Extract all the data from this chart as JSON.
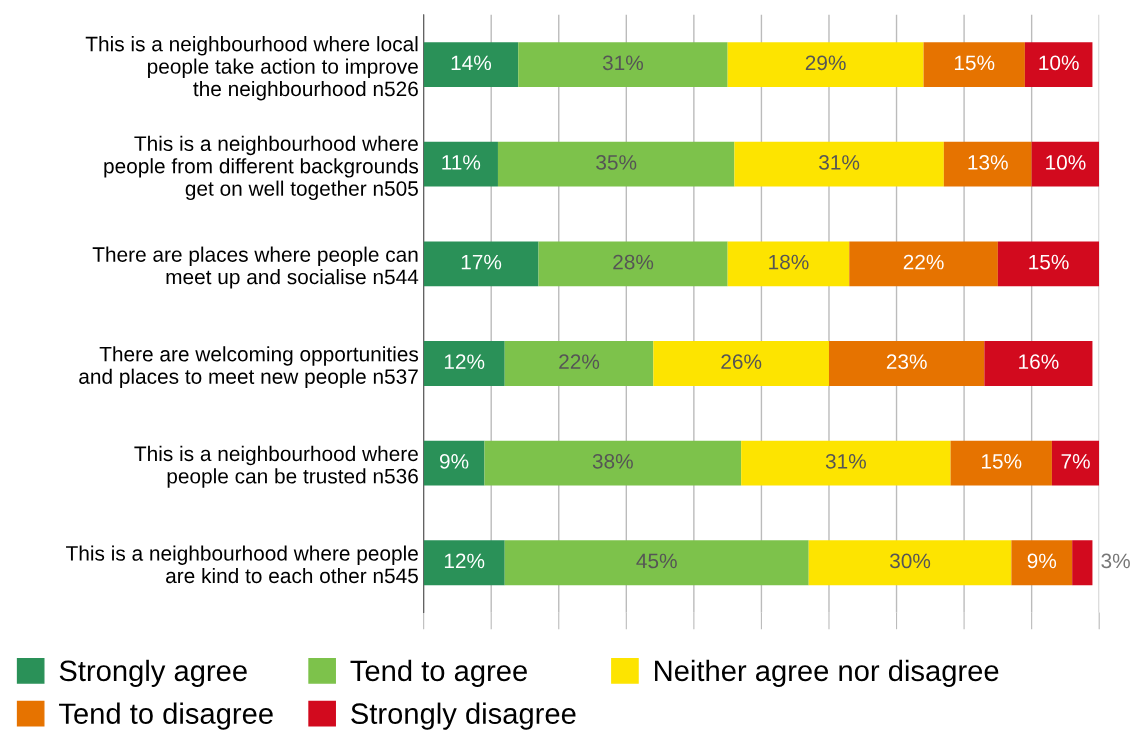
{
  "chart_data": {
    "type": "bar",
    "orientation": "horizontal",
    "stacked": true,
    "categories": [
      "This is a neighbourhood where local\npeople take action to improve\nthe neighbourhood n526",
      "This is a neighbourhood where\npeople from different backgrounds\nget on well together n505",
      "There are places where people can\nmeet up and socialise n544",
      "There are welcoming opportunities\nand places to meet new people n537",
      "This is a neighbourhood where\npeople can be trusted n536",
      "This is a neighbourhood where people\nare kind to each other n545"
    ],
    "series": [
      {
        "name": "Strongly agree",
        "color": "#2a9158",
        "values": [
          14,
          11,
          17,
          12,
          9,
          12
        ],
        "value_labels": [
          "14%",
          "11%",
          "17%",
          "12%",
          "9%",
          "12%"
        ]
      },
      {
        "name": "Tend to agree",
        "color": "#7dc24b",
        "values": [
          31,
          35,
          28,
          22,
          38,
          45
        ],
        "value_labels": [
          "31%",
          "35%",
          "28%",
          "22%",
          "38%",
          "45%"
        ]
      },
      {
        "name": "Neither agree nor disagree",
        "color": "#fde400",
        "values": [
          29,
          31,
          18,
          26,
          31,
          30
        ],
        "value_labels": [
          "29%",
          "31%",
          "18%",
          "26%",
          "31%",
          "30%"
        ]
      },
      {
        "name": "Tend to disagree",
        "color": "#e67300",
        "values": [
          15,
          13,
          22,
          23,
          15,
          9
        ],
        "value_labels": [
          "15%",
          "13%",
          "22%",
          "23%",
          "15%",
          "9%"
        ]
      },
      {
        "name": "Strongly disagree",
        "color": "#d20a1e",
        "values": [
          10,
          10,
          15,
          16,
          7,
          3
        ],
        "value_labels": [
          "10%",
          "10%",
          "15%",
          "16%",
          "7%",
          "3%"
        ]
      }
    ],
    "tick_labels": "y",
    "grid": "x",
    "legend": "bottom"
  }
}
